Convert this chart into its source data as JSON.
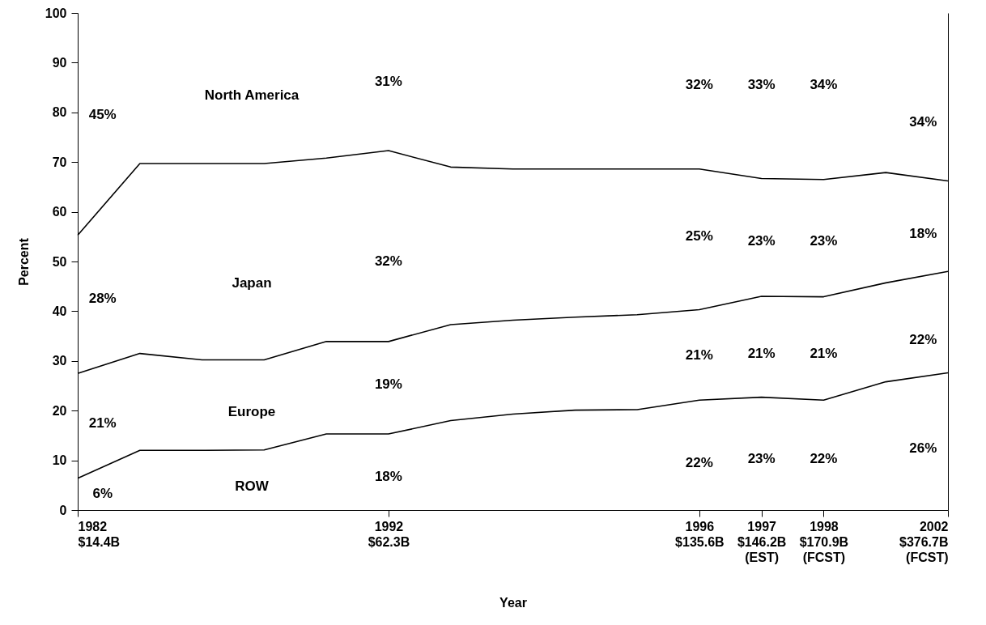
{
  "chart_data": {
    "type": "line",
    "xlabel": "Year",
    "ylabel": "Percent",
    "categories": [
      "1982\n$14.4B",
      null,
      null,
      null,
      null,
      "1992\n$62.3B",
      null,
      null,
      null,
      null,
      "1996\n$135.6B",
      "1997\n$146.2B\n(EST)",
      "1998\n$170.9B\n(FCST)",
      null,
      "2002\n$376.7B\n(FCST)"
    ],
    "series": [
      {
        "color": "#000000",
        "values": [
          55.3,
          69.7,
          69.7,
          69.7,
          70.8,
          72.3,
          69.0,
          68.6,
          68.6,
          68.6,
          68.6,
          66.7,
          66.5,
          67.9,
          66.2
        ]
      },
      {
        "color": "#000000",
        "values": [
          27.5,
          31.5,
          30.2,
          30.2,
          33.9,
          33.9,
          37.3,
          38.2,
          38.8,
          39.3,
          40.3,
          43.0,
          42.9,
          45.7,
          48.0
        ]
      },
      {
        "color": "#000000",
        "values": [
          6.4,
          12.0,
          12.0,
          12.1,
          15.3,
          15.3,
          18.0,
          19.3,
          20.1,
          20.2,
          22.1,
          22.7,
          22.1,
          25.8,
          27.6
        ]
      }
    ],
    "ylim": [
      0,
      100
    ],
    "yticks": [
      0,
      10,
      20,
      30,
      40,
      50,
      60,
      70,
      80,
      90,
      100
    ],
    "line_style": "solid",
    "annotations": [
      "North America",
      "Japan",
      "Europe",
      "ROW",
      "45%",
      "28%",
      "21%",
      "6%",
      "31%",
      "32%",
      "19%",
      "18%",
      "32%",
      "25%",
      "21%",
      "22%",
      "33%",
      "23%",
      "21%",
      "23%",
      "34%",
      "23%",
      "21%",
      "22%",
      "34%",
      "18%",
      "22%",
      "26%"
    ]
  }
}
